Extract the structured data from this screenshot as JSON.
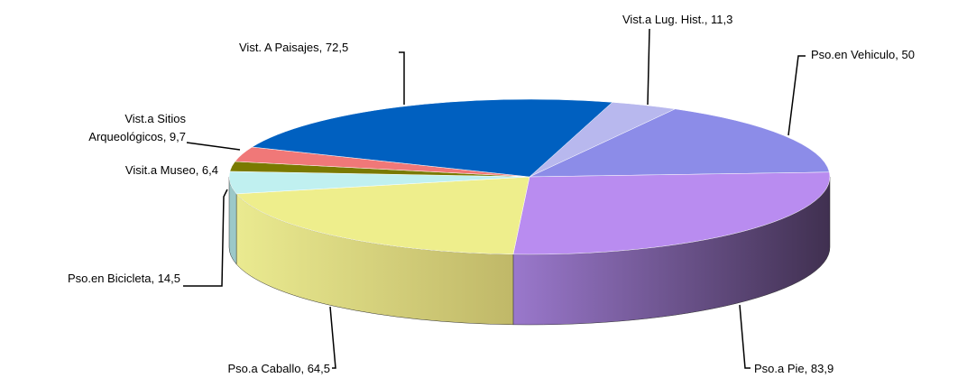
{
  "chart_data": {
    "type": "pie3d",
    "categories": [
      "Vist.a Lug. Hist.",
      "Pso.en Vehiculo",
      "Pso.a Pie",
      "Pso.a Caballo",
      "Pso.en Bicicleta",
      "Visit.a Museo",
      "Vist.a Sitios Arqueológicos",
      "Vist. A Paisajes"
    ],
    "values": [
      11.3,
      50,
      83.9,
      64.5,
      14.5,
      6.4,
      9.7,
      72.5
    ],
    "value_labels": [
      "11,3",
      "50",
      "83,9",
      "64,5",
      "14,5",
      "6,4",
      "9,7",
      "72,5"
    ],
    "label_separator": ", ",
    "colors": [
      "#b8b8ee",
      "#8c8ce8",
      "#b98cf0",
      "#eeee8c",
      "#c0f0f0",
      "#7a7a00",
      "#f07878",
      "#0060c0"
    ],
    "side_colors": [
      "#8a8ab8",
      "#6060a8",
      "#4a3a60",
      "#c4c070",
      "#9cc8c8",
      "#505000",
      "#b05050",
      "#003c80"
    ]
  }
}
